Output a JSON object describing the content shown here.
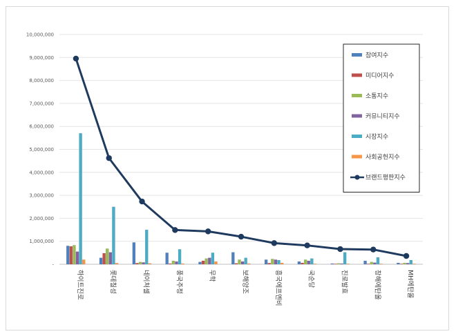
{
  "chart_data": {
    "type": "bar",
    "title": "",
    "xlabel": "",
    "ylabel": "",
    "ylim": [
      0,
      10000000
    ],
    "ytick_step": 1000000,
    "ytick_labels": [
      "-",
      "1,000,000",
      "2,000,000",
      "3,000,000",
      "4,000,000",
      "5,000,000",
      "6,000,000",
      "7,000,000",
      "8,000,000",
      "9,000,000",
      "10,000,000"
    ],
    "grid": true,
    "legend_position": "top-right",
    "categories": [
      "하이트진로",
      "롯데칠성",
      "네이처셀",
      "풍국주정",
      "무학",
      "보해양조",
      "흥국에프엔비",
      "국순당",
      "진로발효",
      "창해에탄올",
      "MH에탄올"
    ],
    "series": [
      {
        "name": "참여지수",
        "kind": "bar",
        "color": "#4f81bd",
        "values": [
          800000,
          280000,
          950000,
          500000,
          100000,
          520000,
          200000,
          120000,
          30000,
          150000,
          60000
        ]
      },
      {
        "name": "미디어지수",
        "kind": "bar",
        "color": "#c0504d",
        "values": [
          780000,
          480000,
          50000,
          30000,
          150000,
          40000,
          50000,
          60000,
          20000,
          20000,
          20000
        ]
      },
      {
        "name": "소통지수",
        "kind": "bar",
        "color": "#9bbb59",
        "values": [
          830000,
          680000,
          100000,
          150000,
          250000,
          200000,
          230000,
          200000,
          40000,
          100000,
          60000
        ]
      },
      {
        "name": "커뮤니티지수",
        "kind": "bar",
        "color": "#8064a2",
        "values": [
          550000,
          520000,
          80000,
          120000,
          280000,
          120000,
          200000,
          150000,
          30000,
          70000,
          50000
        ]
      },
      {
        "name": "시장지수",
        "kind": "bar",
        "color": "#4bacc6",
        "values": [
          5700000,
          2500000,
          1500000,
          650000,
          500000,
          280000,
          180000,
          250000,
          520000,
          300000,
          180000
        ]
      },
      {
        "name": "사회공헌지수",
        "kind": "bar",
        "color": "#f79646",
        "values": [
          200000,
          50000,
          40000,
          30000,
          120000,
          30000,
          60000,
          20000,
          20000,
          20000,
          20000
        ]
      },
      {
        "name": "브랜드평판지수",
        "kind": "line",
        "color": "#1f3a5f",
        "values": [
          8950000,
          4620000,
          2730000,
          1490000,
          1430000,
          1200000,
          920000,
          820000,
          660000,
          640000,
          360000
        ]
      }
    ]
  }
}
